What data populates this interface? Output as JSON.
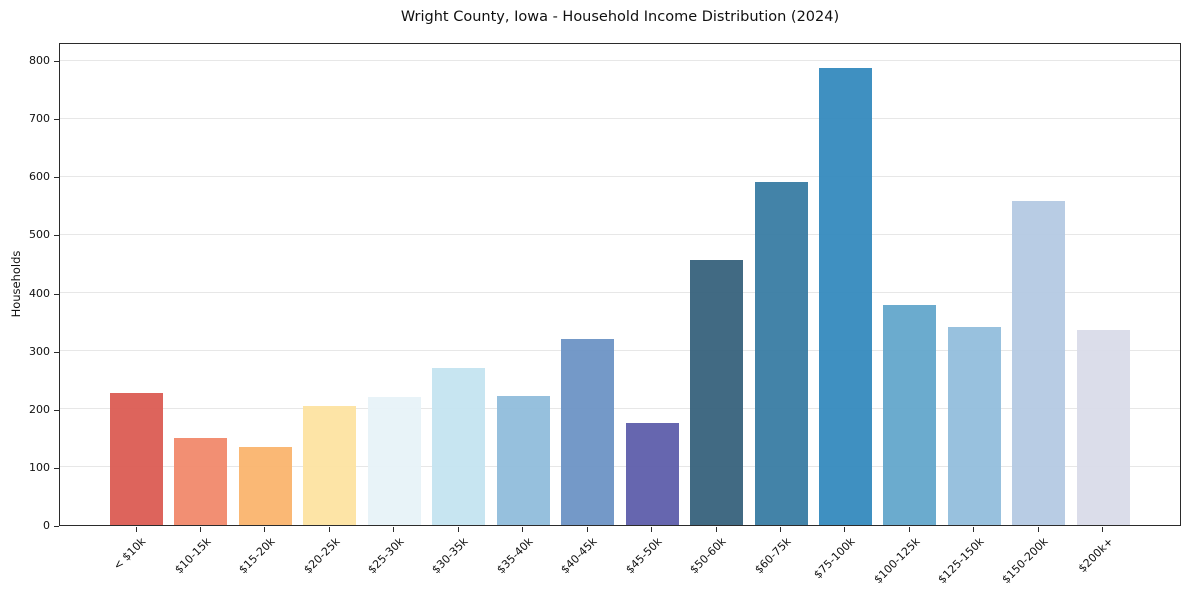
{
  "chart_data": {
    "type": "bar",
    "title": "Wright County, Iowa - Household Income Distribution (2024)",
    "xlabel": "",
    "ylabel": "Households",
    "categories": [
      "< $10k",
      "$10-15k",
      "$15-20k",
      "$20-25k",
      "$25-30k",
      "$30-35k",
      "$35-40k",
      "$40-45k",
      "$45-50k",
      "$50-60k",
      "$60-75k",
      "$75-100k",
      "$100-125k",
      "$125-150k",
      "$150-200k",
      "$200k+"
    ],
    "values": [
      227,
      150,
      134,
      204,
      220,
      270,
      222,
      320,
      176,
      456,
      591,
      786,
      378,
      340,
      557,
      335
    ],
    "bar_colors": [
      "#db5a52",
      "#f1886a",
      "#fab46c",
      "#fde2a0",
      "#e7f2f8",
      "#c3e3f0",
      "#8fbcdb",
      "#6b93c5",
      "#5c5caa",
      "#35617b",
      "#377ba3",
      "#3389bd",
      "#62a6cb",
      "#92bddc",
      "#b4c9e2",
      "#d9dbe9"
    ],
    "yticks": [
      0,
      100,
      200,
      300,
      400,
      500,
      600,
      700,
      800
    ],
    "ylim": [
      0,
      831
    ],
    "x_tick_rotation": 45,
    "grid": "horizontal-lines-on",
    "legend": "none",
    "background_color": "#ffffff",
    "grid_color": "#e7e7e7",
    "spine_color": "#2b2b2b"
  }
}
